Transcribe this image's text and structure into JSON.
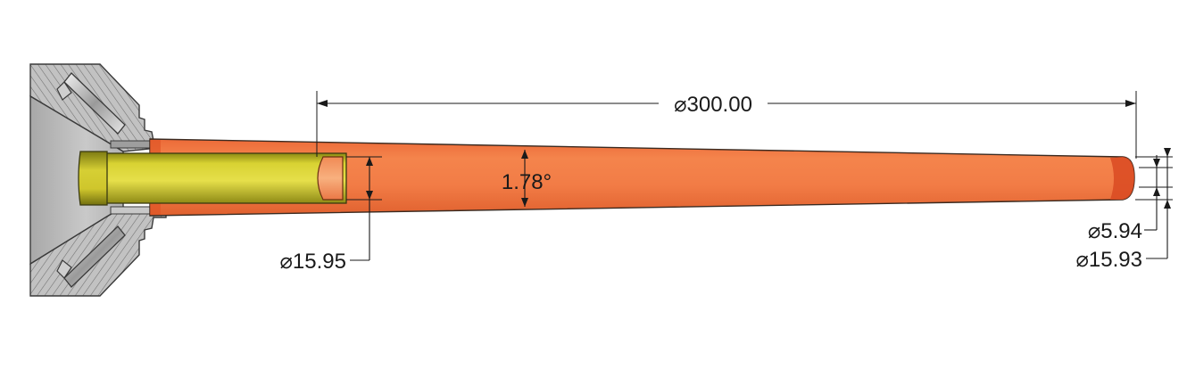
{
  "dimensions": {
    "overall_length": "⌀300.00",
    "taper_angle": "1.78°",
    "bore_diameter": "⌀15.95",
    "tip_bore_diameter": "⌀5.94",
    "tip_outer_diameter": "⌀15.93"
  },
  "colors": {
    "body_orange": "#f07a45",
    "body_orange_dark": "#d9542a",
    "bore_yellow": "#d7d02e",
    "steel_gray": "#b9b9b9",
    "steel_dark": "#7a7a7a",
    "line": "#1a1a1a"
  }
}
